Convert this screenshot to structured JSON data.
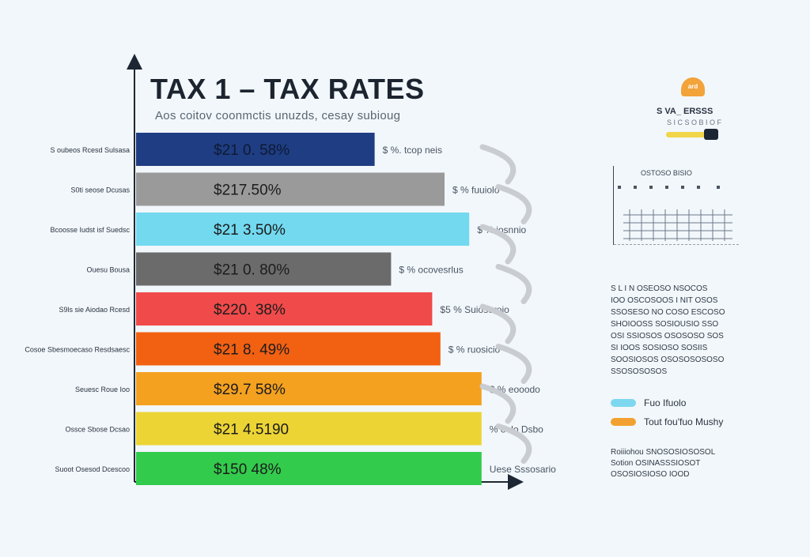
{
  "title": "TAX 1 – TAX RATES",
  "subtitle": "Aos coitov coonmctis unuzds, cesay subioug",
  "chart_data": {
    "type": "bar",
    "orientation": "horizontal",
    "title": "TAX 1 – TAX RATES",
    "xlabel": "",
    "ylabel": "",
    "categories": [
      "S oubeos Rcesd Sulsasa",
      "S0ti seose Dcusas",
      "Bcoosse Iudst isf Suedsc",
      "Ouesu Bousa",
      "S9ls sie Aiodao Rcesd",
      "Cosoe Sbesmoecaso Resdsaesc",
      "Seuesc Roue Ioo",
      "Ossce Sbose Dcsao",
      "Suoot Osesod Dcescoo"
    ],
    "values": [
      58,
      75,
      81,
      62,
      72,
      74,
      84,
      84,
      84
    ],
    "bar_labels": [
      "$21 0. 58%",
      "$217.50%",
      "$21 3.50%",
      "$21 0. 80%",
      "$220. 38%",
      "$21 8. 49%",
      "$29.7 58%",
      "$21 4.5190",
      "$150 48%"
    ],
    "annotations": [
      "$ %. tcop neis",
      "$ % fuuiolo",
      "$ % iosnnio",
      "$ % ocovesrlus",
      "$5 % Suiosoroio",
      "$ % ruosicio",
      "$ % eooodo",
      "% oolo Dsbo",
      "Uese Sssosario"
    ],
    "colors": [
      "#1f3d82",
      "#9a9a9a",
      "#72d9ef",
      "#6b6b6b",
      "#f04a4a",
      "#f26012",
      "#f4a120",
      "#ecd435",
      "#33cb4c"
    ],
    "xlim": [
      0,
      100
    ],
    "grid": false,
    "legend_position": "right"
  },
  "side": {
    "badge": "ard",
    "heading": "S VA_ ERSSS",
    "subheading": "S I C S O B I O F",
    "grid_caption": "OSTOSO BISIO",
    "notes": [
      "S  L I N  OSEOSO   NSOCOS",
      "IOO OSCOSOOS  I NIT OSOS",
      "SSOSESO  NO COSO ESCOSO",
      "SHOIOOSS  SOSIOUSIO SSO",
      "OSI SSIOSOS  OSOSOSO SOS",
      "SI   IOOS  SOSIOSO   SOSIIS",
      "SOOSIOSOS  OSOSOSOSOSO",
      "SSOSOSOSOS"
    ],
    "legend": [
      {
        "label": "Fuo Ifuolo",
        "color": "#7dd8ef"
      },
      {
        "label": "Tout fou'fuo Mushy",
        "color": "#f2a131"
      }
    ],
    "footnote": [
      "Roiiiohou SNOSOSIOSOSOL",
      "Sotion OSINASSSIOSOT",
      "OSOSIOSIOSO IOOD"
    ]
  }
}
